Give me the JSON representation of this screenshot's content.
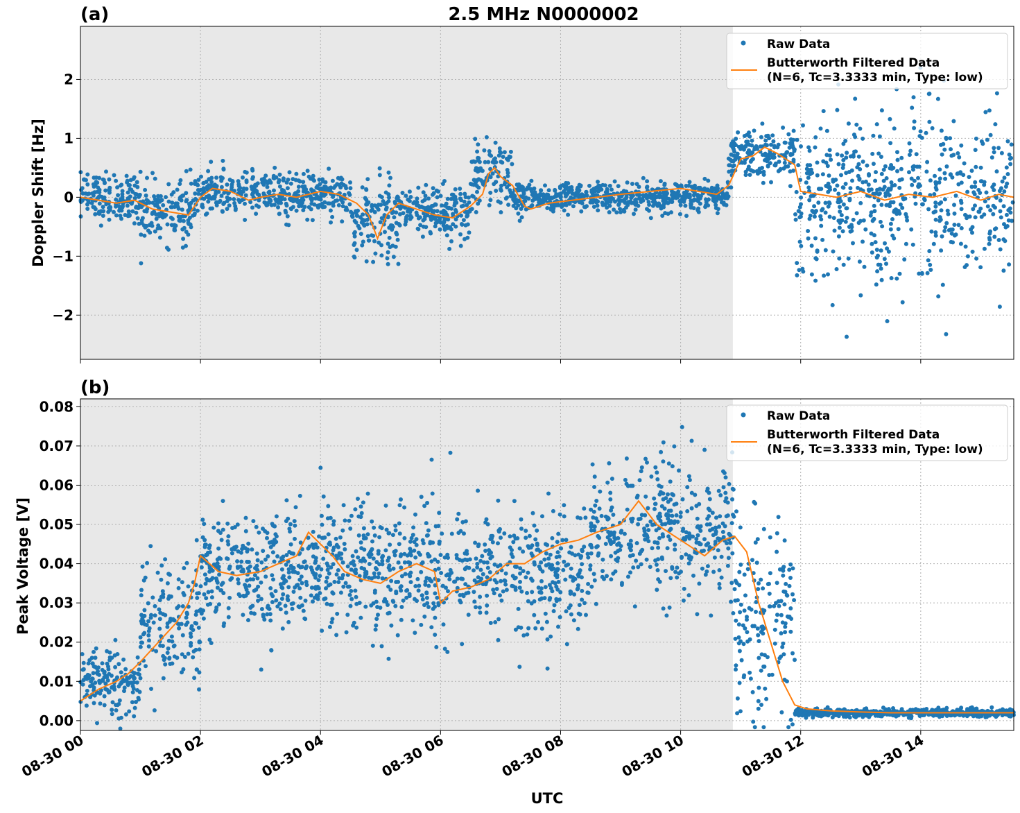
{
  "title": "2.5 MHz N0000002",
  "xlabel": "UTC",
  "x_ticks": [
    "08-30 00",
    "08-30 02",
    "08-30 04",
    "08-30 06",
    "08-30 08",
    "08-30 10",
    "08-30 12",
    "08-30 14"
  ],
  "colors": {
    "raw": "#1f77b4",
    "filtered": "#ff7f0e",
    "night_shade": "#e8e8e8",
    "grid": "#b0b0b0"
  },
  "chart_data": [
    {
      "type": "scatter",
      "panel_label": "(a)",
      "ylabel": "Doppler Shift [Hz]",
      "xlim_hours": [
        0,
        15.55
      ],
      "ylim": [
        -2.75,
        2.9
      ],
      "y_ticks": [
        -2,
        -1,
        0,
        1,
        2
      ],
      "y_tick_labels": [
        "−2",
        "−1",
        "0",
        "1",
        "2"
      ],
      "shaded_interval_hours": [
        0,
        10.87
      ],
      "grid": true,
      "legend_position": "top-right",
      "series": [
        {
          "name": "Raw Data",
          "kind": "scatter"
        },
        {
          "name": "Butterworth Filtered Data",
          "name_line2": "(N=6, Tc=3.3333 min, Type: low)",
          "kind": "line"
        }
      ],
      "filtered_curve": {
        "x_hours": [
          0,
          0.3,
          0.6,
          0.9,
          1.2,
          1.5,
          1.8,
          2.0,
          2.2,
          2.5,
          2.8,
          3.0,
          3.3,
          3.6,
          4.0,
          4.3,
          4.6,
          4.8,
          4.95,
          5.1,
          5.3,
          5.6,
          5.9,
          6.2,
          6.5,
          6.7,
          6.8,
          6.9,
          7.0,
          7.2,
          7.4,
          7.5,
          7.8,
          8.2,
          8.6,
          9.0,
          9.5,
          10.0,
          10.3,
          10.6,
          10.8,
          11.0,
          11.2,
          11.4,
          11.6,
          11.9,
          12.0,
          12.3,
          12.6,
          13.0,
          13.4,
          13.8,
          14.2,
          14.6,
          15.0,
          15.3,
          15.55
        ],
        "y": [
          0.0,
          -0.05,
          -0.1,
          -0.05,
          -0.2,
          -0.25,
          -0.3,
          0.0,
          0.15,
          0.1,
          -0.05,
          0.0,
          0.05,
          0.0,
          0.1,
          0.05,
          -0.1,
          -0.3,
          -0.7,
          -0.3,
          -0.1,
          -0.2,
          -0.3,
          -0.35,
          -0.15,
          0.05,
          0.4,
          0.5,
          0.35,
          0.2,
          -0.15,
          -0.2,
          -0.1,
          -0.05,
          0.0,
          0.05,
          0.1,
          0.15,
          0.1,
          0.05,
          0.2,
          0.65,
          0.7,
          0.85,
          0.75,
          0.55,
          0.1,
          0.05,
          0.0,
          0.1,
          -0.05,
          0.05,
          0.0,
          0.1,
          -0.05,
          0.05,
          0.0
        ]
      },
      "raw_spread_segments": [
        {
          "x_hours": [
            0,
            1.0
          ],
          "center": 0.0,
          "sd": 0.2
        },
        {
          "x_hours": [
            1.0,
            1.9
          ],
          "center": -0.25,
          "sd": 0.25
        },
        {
          "x_hours": [
            1.9,
            4.5
          ],
          "center": 0.05,
          "sd": 0.18
        },
        {
          "x_hours": [
            4.5,
            5.3
          ],
          "center": -0.4,
          "sd": 0.35
        },
        {
          "x_hours": [
            5.3,
            6.5
          ],
          "center": -0.25,
          "sd": 0.22
        },
        {
          "x_hours": [
            6.5,
            7.2
          ],
          "center": 0.35,
          "sd": 0.3
        },
        {
          "x_hours": [
            7.2,
            10.8
          ],
          "center": 0.0,
          "sd": 0.12
        },
        {
          "x_hours": [
            10.8,
            11.9
          ],
          "center": 0.7,
          "sd": 0.22
        },
        {
          "x_hours": [
            11.9,
            15.55
          ],
          "center": 0.0,
          "sd": 0.7
        }
      ]
    },
    {
      "type": "scatter",
      "panel_label": "(b)",
      "ylabel": "Peak Voltage [V]",
      "xlim_hours": [
        0,
        15.55
      ],
      "ylim": [
        -0.0025,
        0.082
      ],
      "y_ticks": [
        0.0,
        0.01,
        0.02,
        0.03,
        0.04,
        0.05,
        0.06,
        0.07,
        0.08
      ],
      "y_tick_labels": [
        "0.00",
        "0.01",
        "0.02",
        "0.03",
        "0.04",
        "0.05",
        "0.06",
        "0.07",
        "0.08"
      ],
      "shaded_interval_hours": [
        0,
        10.87
      ],
      "grid": true,
      "legend_position": "top-right",
      "series": [
        {
          "name": "Raw Data",
          "kind": "scatter"
        },
        {
          "name": "Butterworth Filtered Data",
          "name_line2": "(N=6, Tc=3.3333 min, Type: low)",
          "kind": "line"
        }
      ],
      "filtered_curve": {
        "x_hours": [
          0,
          0.3,
          0.6,
          0.8,
          1.0,
          1.3,
          1.6,
          1.8,
          1.9,
          2.0,
          2.3,
          2.6,
          3.0,
          3.3,
          3.6,
          3.8,
          4.0,
          4.2,
          4.4,
          4.7,
          5.0,
          5.3,
          5.6,
          5.9,
          6.0,
          6.2,
          6.5,
          6.8,
          7.1,
          7.4,
          7.7,
          8.0,
          8.3,
          8.6,
          9.0,
          9.3,
          9.6,
          9.9,
          10.1,
          10.4,
          10.7,
          10.9,
          11.1,
          11.3,
          11.5,
          11.7,
          11.9,
          12.1,
          12.5,
          13.0,
          13.5,
          14.0,
          14.5,
          15.0,
          15.55
        ],
        "y": [
          0.005,
          0.008,
          0.01,
          0.012,
          0.015,
          0.02,
          0.025,
          0.03,
          0.035,
          0.042,
          0.038,
          0.037,
          0.038,
          0.04,
          0.042,
          0.048,
          0.045,
          0.042,
          0.038,
          0.036,
          0.035,
          0.038,
          0.04,
          0.038,
          0.03,
          0.033,
          0.034,
          0.036,
          0.04,
          0.04,
          0.043,
          0.045,
          0.046,
          0.048,
          0.05,
          0.056,
          0.05,
          0.047,
          0.045,
          0.042,
          0.046,
          0.047,
          0.043,
          0.03,
          0.02,
          0.01,
          0.004,
          0.003,
          0.0025,
          0.0022,
          0.002,
          0.002,
          0.002,
          0.002,
          0.002
        ]
      },
      "raw_spread_segments": [
        {
          "x_hours": [
            0,
            1.0
          ],
          "center": 0.01,
          "sd": 0.004
        },
        {
          "x_hours": [
            1.0,
            2.0
          ],
          "center": 0.025,
          "sd": 0.008
        },
        {
          "x_hours": [
            2.0,
            8.5
          ],
          "center": 0.038,
          "sd": 0.008
        },
        {
          "x_hours": [
            8.5,
            10.9
          ],
          "center": 0.048,
          "sd": 0.009
        },
        {
          "x_hours": [
            10.9,
            11.9
          ],
          "center": 0.025,
          "sd": 0.012
        },
        {
          "x_hours": [
            11.9,
            15.55
          ],
          "center": 0.002,
          "sd": 0.0005
        }
      ]
    }
  ]
}
